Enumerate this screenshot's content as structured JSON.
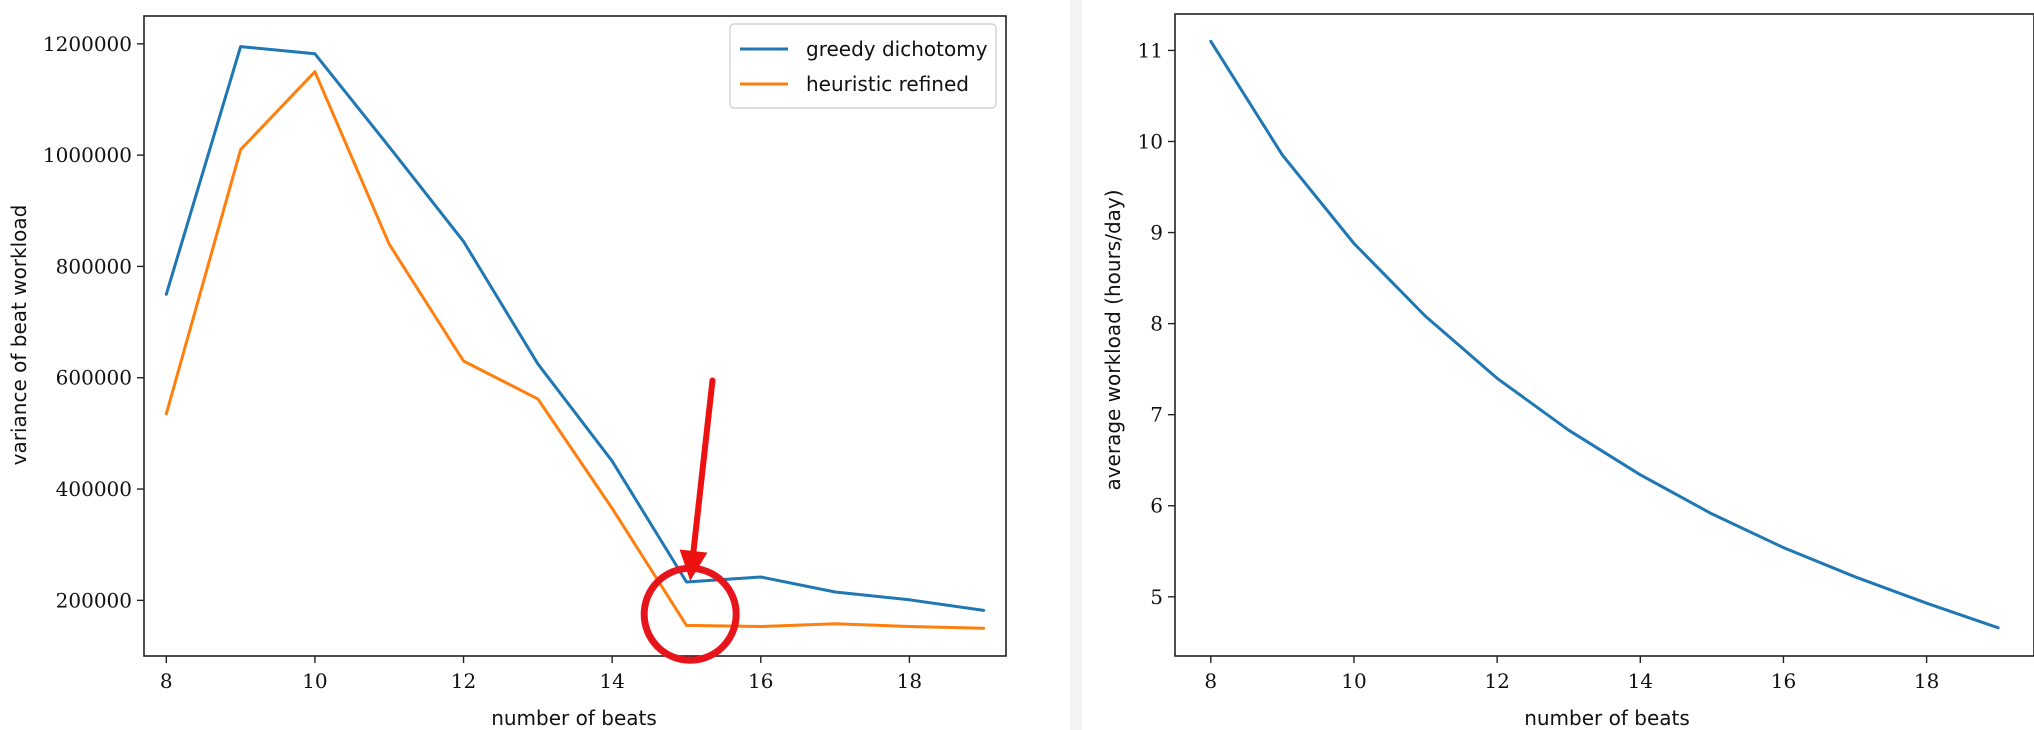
{
  "chart_data": [
    {
      "type": "line",
      "xlabel": "number of beats",
      "ylabel": "variance of beat workload",
      "xlim": [
        7.7,
        19.3
      ],
      "ylim": [
        100000,
        1250000
      ],
      "xticks": [
        8,
        10,
        12,
        14,
        16,
        18
      ],
      "xtick_labels": [
        "8",
        "10",
        "12",
        "14",
        "16",
        "18"
      ],
      "yticks": [
        200000,
        400000,
        600000,
        800000,
        1000000,
        1200000
      ],
      "ytick_labels": [
        "200000",
        "400000",
        "600000",
        "800000",
        "1000000",
        "1200000"
      ],
      "x": [
        8,
        9,
        10,
        11,
        12,
        13,
        14,
        15,
        16,
        17,
        18,
        19
      ],
      "series": [
        {
          "name": "greedy dichotomy",
          "color": "#1f77b4",
          "values": [
            750000,
            1195000,
            1182000,
            1015000,
            845000,
            625000,
            450000,
            233000,
            242000,
            215000,
            201000,
            182000
          ]
        },
        {
          "name": "heuristic refined",
          "color": "#ff7f0e",
          "values": [
            535000,
            1010000,
            1150000,
            840000,
            630000,
            562000,
            365000,
            155000,
            153000,
            158000,
            153000,
            150000
          ]
        }
      ],
      "legend": {
        "position": "top-right"
      },
      "grid": false,
      "annotations": [
        {
          "type": "circle",
          "color": "#e8141c",
          "x": 15.05,
          "y": 175000
        },
        {
          "type": "arrow",
          "color": "#ee1111",
          "from": [
            15.35,
            595000
          ],
          "to": [
            15.05,
            235000
          ]
        }
      ]
    },
    {
      "type": "line",
      "xlabel": "number of beats",
      "ylabel": "average workload (hours/day)",
      "xlim": [
        7.5,
        19.5
      ],
      "ylim": [
        4.35,
        11.4
      ],
      "xticks": [
        8,
        10,
        12,
        14,
        16,
        18
      ],
      "xtick_labels": [
        "8",
        "10",
        "12",
        "14",
        "16",
        "18"
      ],
      "yticks": [
        5,
        6,
        7,
        8,
        9,
        10,
        11
      ],
      "ytick_labels": [
        "5",
        "6",
        "7",
        "8",
        "9",
        "10",
        "11"
      ],
      "x": [
        8,
        9,
        10,
        11,
        12,
        13,
        14,
        15,
        16,
        17,
        18,
        19
      ],
      "series": [
        {
          "color": "#1f77b4",
          "values": [
            11.1,
            9.85,
            8.88,
            8.08,
            7.4,
            6.83,
            6.34,
            5.91,
            5.54,
            5.22,
            4.93,
            4.66
          ]
        }
      ],
      "grid": false
    }
  ]
}
